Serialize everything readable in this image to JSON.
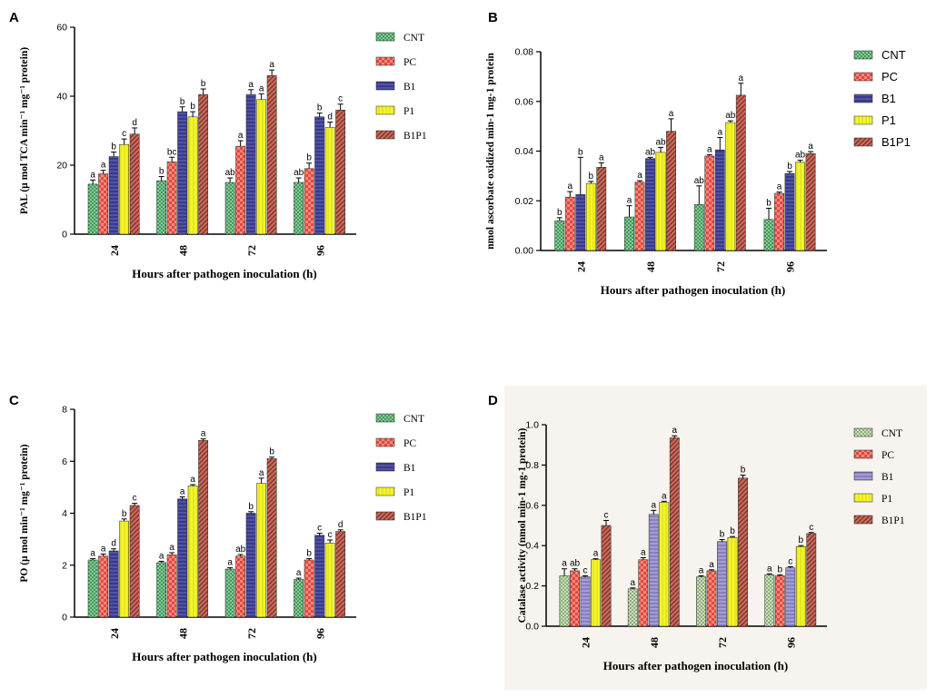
{
  "figure": {
    "colors": {
      "CNT": "#2a8a4a",
      "PC": "#e2483d",
      "B1": "#4040a0",
      "P1": "#f2f22a",
      "B1P1": "#a8463a",
      "CNT_D": "#c5dcb6",
      "B1_D": "#8a84c0"
    }
  },
  "chart_data": [
    {
      "panel": "A",
      "type": "bar",
      "title": "",
      "xlabel": "Hours after pathogen inoculation (h)",
      "ylabel": "PAL (µ mol TCA min⁻¹ mg⁻¹ protein)",
      "ylim": [
        0,
        60
      ],
      "yticks": [
        "0",
        "20",
        "40",
        "60"
      ],
      "categories": [
        "24",
        "48",
        "72",
        "96"
      ],
      "legend_position": "right",
      "series": [
        {
          "name": "CNT",
          "values": [
            14.5,
            15.5,
            15,
            15
          ],
          "errors": [
            1.2,
            1.2,
            1.3,
            1.3
          ],
          "letters": [
            "a",
            "b",
            "ab",
            "ab"
          ]
        },
        {
          "name": "PC",
          "values": [
            17.5,
            21,
            25.5,
            19
          ],
          "errors": [
            1.0,
            1.3,
            1.6,
            1.6
          ],
          "letters": [
            "a",
            "bc",
            "a",
            "b"
          ]
        },
        {
          "name": "B1",
          "values": [
            22.5,
            35.5,
            40.5,
            34
          ],
          "errors": [
            1.3,
            1.4,
            1.4,
            1.1
          ],
          "letters": [
            "b",
            "b",
            "a",
            "b"
          ]
        },
        {
          "name": "P1",
          "values": [
            26,
            34,
            39,
            31
          ],
          "errors": [
            1.6,
            1.5,
            1.7,
            1.5
          ],
          "letters": [
            "c",
            "b",
            "a",
            "d"
          ]
        },
        {
          "name": "B1P1",
          "values": [
            29,
            40.5,
            46,
            36
          ],
          "errors": [
            1.8,
            1.6,
            1.6,
            1.7
          ],
          "letters": [
            "d",
            "b",
            "a",
            "c"
          ]
        }
      ]
    },
    {
      "panel": "B",
      "type": "bar",
      "title": "",
      "xlabel": "Hours after pathogen inoculation (h)",
      "ylabel": "nmol ascorbate oxidized min-1 mg-1 protein",
      "ylim": [
        0,
        0.08
      ],
      "yticks": [
        "0.00",
        "0.02",
        "0.04",
        "0.06",
        "0.08"
      ],
      "categories": [
        "24",
        "48",
        "72",
        "96"
      ],
      "legend_position": "right",
      "series": [
        {
          "name": "CNT",
          "values": [
            0.012,
            0.0135,
            0.0185,
            0.0125
          ],
          "errors": [
            0.0012,
            0.0045,
            0.0075,
            0.0045
          ],
          "letters": [
            "b",
            "a",
            "ab",
            "b"
          ]
        },
        {
          "name": "PC",
          "values": [
            0.0215,
            0.0275,
            0.038,
            0.023
          ],
          "errors": [
            0.0022,
            0.0006,
            0.0005,
            0.0005
          ],
          "letters": [
            "a",
            "a",
            "a",
            "a"
          ]
        },
        {
          "name": "B1",
          "values": [
            0.0225,
            0.037,
            0.0405,
            0.031
          ],
          "errors": [
            0.015,
            0.0005,
            0.005,
            0.0008
          ],
          "letters": [
            "b",
            "ab",
            "a",
            "b"
          ]
        },
        {
          "name": "P1",
          "values": [
            0.027,
            0.0395,
            0.0515,
            0.0355
          ],
          "errors": [
            0.0008,
            0.002,
            0.0007,
            0.0008
          ],
          "letters": [
            "b",
            "ab",
            "ab",
            "ab"
          ]
        },
        {
          "name": "B1P1",
          "values": [
            0.0335,
            0.048,
            0.0625,
            0.039
          ],
          "errors": [
            0.0018,
            0.005,
            0.0048,
            0.0008
          ],
          "letters": [
            "a",
            "a",
            "a",
            "a"
          ]
        }
      ]
    },
    {
      "panel": "C",
      "type": "bar",
      "title": "",
      "xlabel": "Hours after pathogen inoculation (h)",
      "ylabel": "PO (µ mol min⁻¹ mg⁻¹ protein)",
      "ylim": [
        0,
        8
      ],
      "yticks": [
        "0",
        "2",
        "4",
        "6",
        "8"
      ],
      "categories": [
        "24",
        "48",
        "72",
        "96"
      ],
      "legend_position": "right",
      "series": [
        {
          "name": "CNT",
          "values": [
            2.2,
            2.1,
            1.85,
            1.45
          ],
          "errors": [
            0.05,
            0.05,
            0.05,
            0.05
          ],
          "letters": [
            "a",
            "a",
            "a",
            "a"
          ]
        },
        {
          "name": "PC",
          "values": [
            2.35,
            2.4,
            2.35,
            2.2
          ],
          "errors": [
            0.08,
            0.08,
            0.06,
            0.05
          ],
          "letters": [
            "a",
            "a",
            "ab",
            "b"
          ]
        },
        {
          "name": "B1",
          "values": [
            2.55,
            4.55,
            4.0,
            3.15
          ],
          "errors": [
            0.08,
            0.08,
            0.06,
            0.08
          ],
          "letters": [
            "d",
            "a",
            "b",
            "c"
          ]
        },
        {
          "name": "P1",
          "values": [
            3.7,
            5.05,
            5.15,
            2.85
          ],
          "errors": [
            0.08,
            0.05,
            0.2,
            0.12
          ],
          "letters": [
            "b",
            "a",
            "a",
            "c"
          ]
        },
        {
          "name": "B1P1",
          "values": [
            4.3,
            6.8,
            6.1,
            3.3
          ],
          "errors": [
            0.08,
            0.06,
            0.06,
            0.06
          ],
          "letters": [
            "c",
            "a",
            "b",
            "d"
          ]
        }
      ]
    },
    {
      "panel": "D",
      "type": "bar",
      "title": "",
      "xlabel": "Hours after pathogen inoculation (h)",
      "ylabel": "Catalase activity (nmol min-1 mg-1 protein)",
      "ylim": [
        0,
        1.0
      ],
      "yticks": [
        "0.0",
        "0.2",
        "0.4",
        "0.6",
        "0.8",
        "1.0"
      ],
      "categories": [
        "24",
        "48",
        "72",
        "96"
      ],
      "legend_position": "right",
      "series": [
        {
          "name": "CNT",
          "values": [
            0.25,
            0.185,
            0.245,
            0.255
          ],
          "errors": [
            0.035,
            0.005,
            0.005,
            0.005
          ],
          "letters": [
            "a",
            "a",
            "a",
            "a"
          ]
        },
        {
          "name": "PC",
          "values": [
            0.275,
            0.33,
            0.275,
            0.25
          ],
          "errors": [
            0.01,
            0.01,
            0.005,
            0.005
          ],
          "letters": [
            "ab",
            "a",
            "a",
            "b"
          ]
        },
        {
          "name": "B1",
          "values": [
            0.245,
            0.555,
            0.42,
            0.29
          ],
          "errors": [
            0.005,
            0.02,
            0.01,
            0.005
          ],
          "letters": [
            "c",
            "a",
            "b",
            "c"
          ]
        },
        {
          "name": "P1",
          "values": [
            0.33,
            0.615,
            0.44,
            0.395
          ],
          "errors": [
            0.005,
            0.005,
            0.005,
            0.005
          ],
          "letters": [
            "a",
            "a",
            "b",
            "b"
          ]
        },
        {
          "name": "B1P1",
          "values": [
            0.5,
            0.935,
            0.735,
            0.46
          ],
          "errors": [
            0.025,
            0.01,
            0.015,
            0.005
          ],
          "letters": [
            "c",
            "a",
            "b",
            "c"
          ]
        }
      ]
    }
  ]
}
